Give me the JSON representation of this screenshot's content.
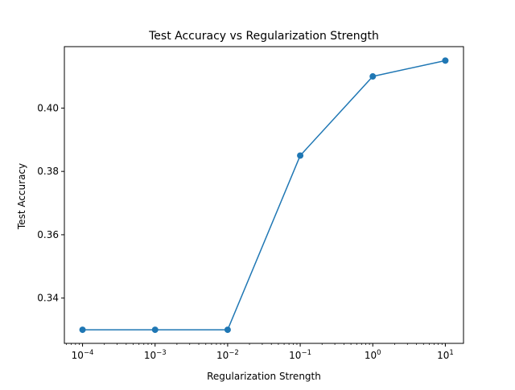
{
  "chart_data": {
    "type": "line",
    "title": "Test Accuracy vs Regularization Strength",
    "xlabel": "Regularization Strength",
    "ylabel": "Test Accuracy",
    "xscale": "log",
    "xlim": [
      5.62e-05,
      17.8
    ],
    "ylim": [
      0.3257,
      0.4194
    ],
    "x": [
      0.0001,
      0.001,
      0.01,
      0.1,
      1,
      10
    ],
    "series": [
      {
        "name": "",
        "values": [
          0.33,
          0.33,
          0.33,
          0.385,
          0.41,
          0.415
        ],
        "color": "#1f77b4"
      }
    ],
    "xticks": [
      {
        "value": 0.0001,
        "base": "10",
        "exp": "−4"
      },
      {
        "value": 0.001,
        "base": "10",
        "exp": "−3"
      },
      {
        "value": 0.01,
        "base": "10",
        "exp": "−2"
      },
      {
        "value": 0.1,
        "base": "10",
        "exp": "−1"
      },
      {
        "value": 1,
        "base": "10",
        "exp": "0"
      },
      {
        "value": 10,
        "base": "10",
        "exp": "1"
      }
    ],
    "yticks": [
      {
        "value": 0.34,
        "label": "0.34"
      },
      {
        "value": 0.36,
        "label": "0.36"
      },
      {
        "value": 0.38,
        "label": "0.38"
      },
      {
        "value": 0.4,
        "label": "0.40"
      }
    ],
    "grid": false,
    "legend": "none"
  }
}
